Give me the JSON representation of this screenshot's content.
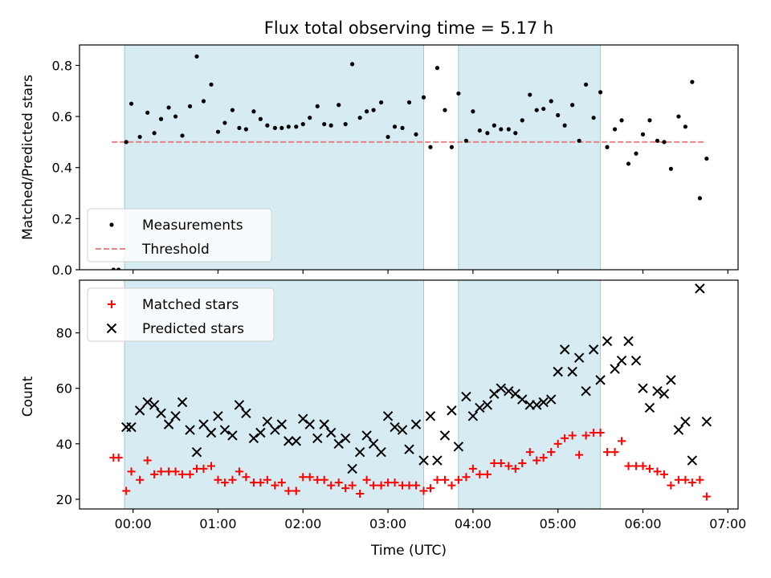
{
  "title": "Flux total observing time = 5.17 h",
  "chart_data": [
    {
      "type": "scatter",
      "ylabel": "Matched/Predicted stars",
      "ylim": [
        0,
        0.88
      ],
      "yticks": [
        "0.0",
        "0.2",
        "0.4",
        "0.6",
        "0.8"
      ],
      "xlim_hours": [
        -0.63,
        7.12
      ],
      "legend": {
        "placement": "lower-left",
        "entries": [
          "Measurements",
          "Threshold"
        ]
      },
      "threshold": 0.5,
      "threshold_x_hours": [
        -0.25,
        6.73
      ],
      "shaded_intervals_hours": [
        [
          -0.1,
          3.42
        ],
        [
          3.83,
          5.5
        ]
      ],
      "series": [
        {
          "name": "Measurements",
          "x_hours": [
            -0.23,
            -0.17,
            -0.08,
            -0.02,
            0.08,
            0.17,
            0.25,
            0.33,
            0.42,
            0.5,
            0.58,
            0.67,
            0.75,
            0.83,
            0.92,
            1.0,
            1.08,
            1.17,
            1.25,
            1.33,
            1.42,
            1.5,
            1.58,
            1.67,
            1.75,
            1.83,
            1.92,
            2.0,
            2.08,
            2.17,
            2.25,
            2.33,
            2.42,
            2.5,
            2.58,
            2.67,
            2.75,
            2.83,
            2.92,
            3.0,
            3.08,
            3.17,
            3.25,
            3.33,
            3.42,
            3.5,
            3.58,
            3.67,
            3.75,
            3.83,
            3.92,
            4.0,
            4.08,
            4.17,
            4.25,
            4.33,
            4.42,
            4.5,
            4.58,
            4.67,
            4.75,
            4.83,
            4.92,
            5.0,
            5.08,
            5.17,
            5.25,
            5.33,
            5.42,
            5.5,
            5.58,
            5.67,
            5.75,
            5.83,
            5.92,
            6.0,
            6.08,
            6.17,
            6.25,
            6.33,
            6.42,
            6.5,
            6.58,
            6.67,
            6.75
          ],
          "y": [
            0.0,
            0.0,
            0.5,
            0.65,
            0.52,
            0.615,
            0.535,
            0.59,
            0.635,
            0.6,
            0.525,
            0.64,
            0.835,
            0.66,
            0.725,
            0.54,
            0.575,
            0.625,
            0.555,
            0.55,
            0.62,
            0.59,
            0.565,
            0.555,
            0.555,
            0.56,
            0.56,
            0.57,
            0.595,
            0.64,
            0.57,
            0.565,
            0.645,
            0.57,
            0.805,
            0.595,
            0.62,
            0.625,
            0.655,
            0.52,
            0.56,
            0.555,
            0.655,
            0.53,
            0.675,
            0.48,
            0.79,
            0.625,
            0.48,
            0.69,
            0.505,
            0.62,
            0.545,
            0.535,
            0.565,
            0.55,
            0.55,
            0.535,
            0.585,
            0.685,
            0.625,
            0.63,
            0.66,
            0.605,
            0.565,
            0.645,
            0.505,
            0.725,
            0.595,
            0.695,
            0.48,
            0.55,
            0.585,
            0.415,
            0.455,
            0.53,
            0.585,
            0.505,
            0.5,
            0.395,
            0.6,
            0.56,
            0.735,
            0.28,
            0.435
          ]
        }
      ]
    },
    {
      "type": "scatter",
      "xlabel": "Time (UTC)",
      "ylabel": "Count",
      "ylim": [
        16.5,
        99
      ],
      "yticks": [
        "20",
        "40",
        "60",
        "80"
      ],
      "xticks": [
        "00:00",
        "01:00",
        "02:00",
        "03:00",
        "04:00",
        "05:00",
        "06:00",
        "07:00"
      ],
      "xlim_hours": [
        -0.63,
        7.12
      ],
      "legend": {
        "placement": "upper-left",
        "entries": [
          "Matched stars",
          "Predicted stars"
        ]
      },
      "shaded_intervals_hours": [
        [
          -0.1,
          3.42
        ],
        [
          3.83,
          5.5
        ]
      ],
      "series": [
        {
          "name": "Matched stars",
          "x_hours": [
            -0.23,
            -0.17,
            -0.08,
            -0.02,
            0.08,
            0.17,
            0.25,
            0.33,
            0.42,
            0.5,
            0.58,
            0.67,
            0.75,
            0.83,
            0.92,
            1.0,
            1.08,
            1.17,
            1.25,
            1.33,
            1.42,
            1.5,
            1.58,
            1.67,
            1.75,
            1.83,
            1.92,
            2.0,
            2.08,
            2.17,
            2.25,
            2.33,
            2.42,
            2.5,
            2.58,
            2.67,
            2.75,
            2.83,
            2.92,
            3.0,
            3.08,
            3.17,
            3.25,
            3.33,
            3.42,
            3.5,
            3.58,
            3.67,
            3.75,
            3.83,
            3.92,
            4.0,
            4.08,
            4.17,
            4.25,
            4.33,
            4.42,
            4.5,
            4.58,
            4.67,
            4.75,
            4.83,
            4.92,
            5.0,
            5.08,
            5.17,
            5.25,
            5.33,
            5.42,
            5.5,
            5.58,
            5.67,
            5.75,
            5.83,
            5.92,
            6.0,
            6.08,
            6.17,
            6.25,
            6.33,
            6.42,
            6.5,
            6.58,
            6.67,
            6.75
          ],
          "y": [
            35,
            35,
            23,
            30,
            27,
            34,
            29,
            30,
            30,
            30,
            29,
            29,
            31,
            31,
            32,
            27,
            26,
            27,
            30,
            28,
            26,
            26,
            27,
            25,
            26,
            23,
            23,
            28,
            28,
            27,
            27,
            25,
            26,
            24,
            25,
            22,
            27,
            25,
            25,
            26,
            26,
            25,
            25,
            25,
            23,
            24,
            27,
            27,
            25,
            27,
            28,
            31,
            29,
            29,
            33,
            33,
            32,
            31,
            33,
            37,
            34,
            35,
            37,
            40,
            42,
            43,
            36,
            43,
            44,
            44,
            37,
            37,
            41,
            32,
            32,
            32,
            31,
            30,
            29,
            25,
            27,
            27,
            26,
            27,
            21
          ]
        },
        {
          "name": "Predicted stars",
          "x_hours": [
            -0.08,
            -0.02,
            0.08,
            0.17,
            0.25,
            0.33,
            0.42,
            0.5,
            0.58,
            0.67,
            0.75,
            0.83,
            0.92,
            1.0,
            1.08,
            1.17,
            1.25,
            1.33,
            1.42,
            1.5,
            1.58,
            1.67,
            1.75,
            1.83,
            1.92,
            2.0,
            2.08,
            2.17,
            2.25,
            2.33,
            2.42,
            2.5,
            2.58,
            2.67,
            2.75,
            2.83,
            2.92,
            3.0,
            3.08,
            3.17,
            3.25,
            3.33,
            3.42,
            3.5,
            3.58,
            3.67,
            3.75,
            3.83,
            3.92,
            4.0,
            4.08,
            4.17,
            4.25,
            4.33,
            4.42,
            4.5,
            4.58,
            4.67,
            4.75,
            4.83,
            4.92,
            5.0,
            5.08,
            5.17,
            5.25,
            5.33,
            5.42,
            5.5,
            5.58,
            5.67,
            5.75,
            5.83,
            5.92,
            6.0,
            6.08,
            6.17,
            6.25,
            6.33,
            6.42,
            6.5,
            6.58,
            6.67,
            6.75
          ],
          "y": [
            46,
            46,
            52,
            55,
            54,
            51,
            47,
            50,
            55,
            45,
            37,
            47,
            44,
            50,
            45,
            43,
            54,
            51,
            42,
            44,
            48,
            45,
            47,
            41,
            41,
            49,
            47,
            42,
            47,
            44,
            40,
            42,
            31,
            37,
            43,
            40,
            37,
            50,
            46,
            45,
            38,
            47,
            34,
            50,
            34,
            43,
            52,
            39,
            57,
            50,
            53,
            54,
            58,
            60,
            59,
            58,
            56,
            54,
            54,
            55,
            56,
            66,
            74,
            66,
            71,
            59,
            74,
            63,
            77,
            67,
            70,
            77,
            70,
            60,
            53,
            59,
            58,
            63,
            45,
            48,
            34,
            96,
            48
          ]
        }
      ]
    }
  ]
}
